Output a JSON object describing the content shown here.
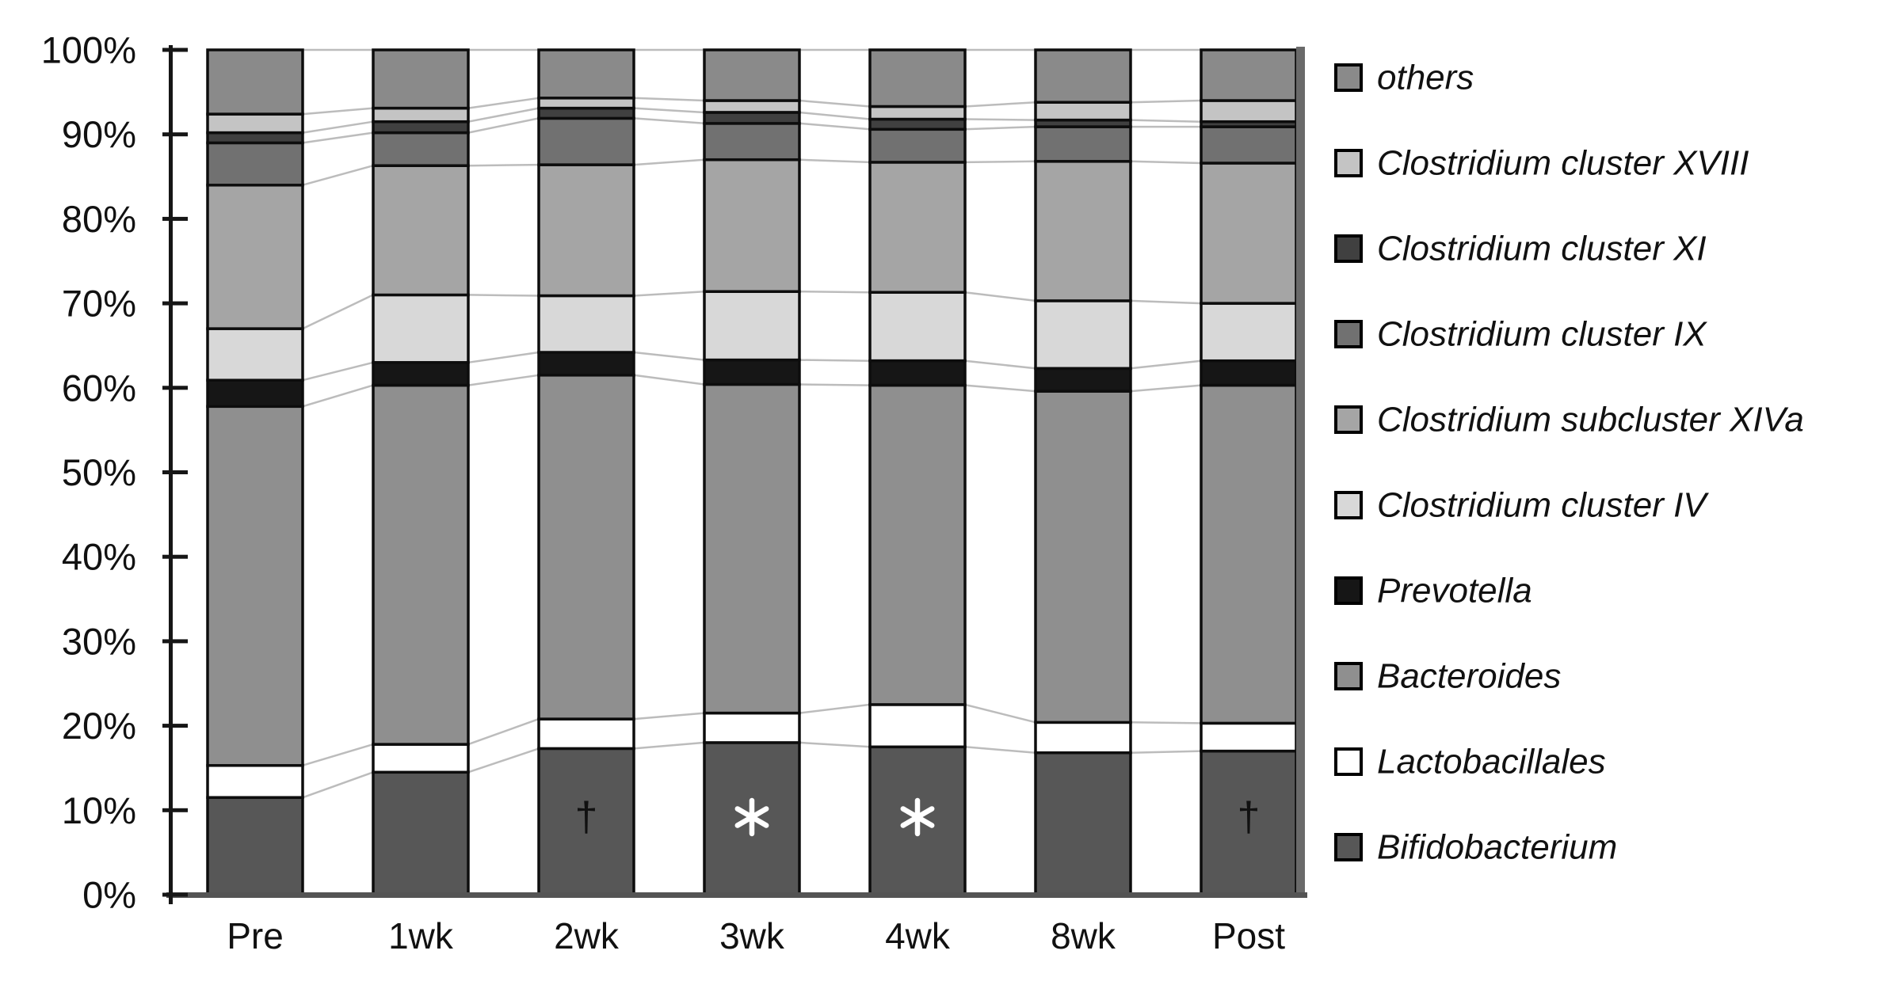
{
  "figure": {
    "background": "#ffffff",
    "kind": "stacked-bar-microbiota-composition"
  },
  "chart_data": {
    "type": "bar",
    "stacked": true,
    "unit": "%",
    "categories": [
      "Pre",
      "1wk",
      "2wk",
      "3wk",
      "4wk",
      "8wk",
      "Post"
    ],
    "series": [
      {
        "name": "Bifidobacterium",
        "color": "#575757",
        "values": [
          11.5,
          14.5,
          17.3,
          18.0,
          17.5,
          16.8,
          17.0
        ]
      },
      {
        "name": "Lactobacillales",
        "color": "#ffffff",
        "values": [
          3.8,
          3.3,
          3.5,
          3.5,
          5.0,
          3.6,
          3.3
        ]
      },
      {
        "name": "Bacteroides",
        "color": "#8f8f8f",
        "values": [
          42.5,
          42.5,
          40.7,
          38.9,
          37.8,
          39.2,
          40.0
        ]
      },
      {
        "name": "Prevotella",
        "color": "#161616",
        "values": [
          3.1,
          2.7,
          2.7,
          2.9,
          2.9,
          2.7,
          2.9
        ]
      },
      {
        "name": "Clostridium cluster IV",
        "color": "#d8d8d8",
        "values": [
          6.1,
          8.0,
          6.7,
          8.1,
          8.1,
          8.0,
          6.8
        ]
      },
      {
        "name": "Clostridium subcluster XIVa",
        "color": "#a5a5a5",
        "values": [
          17.0,
          15.3,
          15.5,
          15.6,
          15.4,
          16.5,
          16.6
        ]
      },
      {
        "name": "Clostridium cluster IX",
        "color": "#717171",
        "values": [
          5.0,
          3.9,
          5.5,
          4.3,
          3.9,
          4.1,
          4.3
        ]
      },
      {
        "name": "Clostridium cluster XI",
        "color": "#404040",
        "values": [
          1.2,
          1.3,
          1.2,
          1.3,
          1.2,
          0.8,
          0.6
        ]
      },
      {
        "name": "Clostridium cluster XVIII",
        "color": "#c4c4c4",
        "values": [
          2.2,
          1.6,
          1.2,
          1.4,
          1.5,
          2.1,
          2.5
        ]
      },
      {
        "name": "others",
        "color": "#8a8a8a",
        "values": [
          7.6,
          6.9,
          5.7,
          6.0,
          6.7,
          6.2,
          6.0
        ]
      }
    ],
    "y_axis": {
      "min": 0,
      "max": 100,
      "tick_labels": [
        "0%",
        "10%",
        "20%",
        "30%",
        "40%",
        "50%",
        "60%",
        "70%",
        "80%",
        "90%",
        "100%"
      ]
    },
    "legend": {
      "position": "right",
      "entries": [
        {
          "label": "others",
          "color": "#8a8a8a"
        },
        {
          "label": "Clostridium cluster XVIII",
          "color": "#c4c4c4"
        },
        {
          "label": "Clostridium cluster XI",
          "color": "#404040"
        },
        {
          "label": "Clostridium cluster IX",
          "color": "#717171"
        },
        {
          "label": "Clostridium subcluster XIVa",
          "color": "#a5a5a5"
        },
        {
          "label": "Clostridium cluster IV",
          "color": "#d8d8d8"
        },
        {
          "label": "Prevotella",
          "color": "#161616"
        },
        {
          "label": "Bacteroides",
          "color": "#8f8f8f"
        },
        {
          "label": "Lactobacillales",
          "color": "#ffffff"
        },
        {
          "label": "Bifidobacterium",
          "color": "#575757"
        }
      ]
    },
    "markers": [
      {
        "category": "2wk",
        "symbol": "†",
        "color": "#ffffff"
      },
      {
        "category": "3wk",
        "symbol": "*",
        "color": "#ffffff"
      },
      {
        "category": "4wk",
        "symbol": "*",
        "color": "#ffffff"
      },
      {
        "category": "Post",
        "symbol": "†",
        "color": "#ffffff"
      }
    ],
    "series_lines": true,
    "grid": false
  },
  "style_colors": {
    "axis": "#161616",
    "baseline": "#545454",
    "right_frame": "#6a6a6a",
    "connector": "#bcbcbc",
    "bar_border": "#0d0d0d",
    "text": "#111111"
  }
}
